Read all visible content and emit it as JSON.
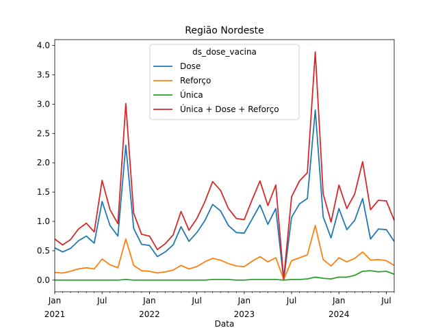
{
  "chart_data": {
    "type": "line",
    "title": "Região Nordeste",
    "xlabel": "Data",
    "ylabel": "",
    "ylim": [
      -0.2,
      4.1
    ],
    "xlim": [
      "2021-01",
      "2024-08"
    ],
    "grid": false,
    "y_ticks": [
      "0.0",
      "0.5",
      "1.0",
      "1.5",
      "2.0",
      "2.5",
      "3.0",
      "3.5",
      "4.0"
    ],
    "x_ticks_major": [
      {
        "month": "2021-01",
        "label": "Jan",
        "year": "2021"
      },
      {
        "month": "2021-07",
        "label": "Jul",
        "year": ""
      },
      {
        "month": "2022-01",
        "label": "Jan",
        "year": "2022"
      },
      {
        "month": "2022-07",
        "label": "Jul",
        "year": ""
      },
      {
        "month": "2023-01",
        "label": "Jan",
        "year": "2023"
      },
      {
        "month": "2023-07",
        "label": "Jul",
        "year": ""
      },
      {
        "month": "2024-01",
        "label": "Jan",
        "year": "2024"
      },
      {
        "month": "2024-07",
        "label": "Jul",
        "year": ""
      }
    ],
    "legend": {
      "title": "ds_dose_vacina",
      "placement": "top-center"
    },
    "x": [
      "2021-01",
      "2021-02",
      "2021-03",
      "2021-04",
      "2021-05",
      "2021-06",
      "2021-07",
      "2021-08",
      "2021-09",
      "2021-10",
      "2021-11",
      "2021-12",
      "2022-01",
      "2022-02",
      "2022-03",
      "2022-04",
      "2022-05",
      "2022-06",
      "2022-07",
      "2022-08",
      "2022-09",
      "2022-10",
      "2022-11",
      "2022-12",
      "2023-01",
      "2023-02",
      "2023-03",
      "2023-04",
      "2023-05",
      "2023-06",
      "2023-07",
      "2023-08",
      "2023-09",
      "2023-10",
      "2023-11",
      "2023-12",
      "2024-01",
      "2024-02",
      "2024-03",
      "2024-04",
      "2024-05",
      "2024-06",
      "2024-07",
      "2024-08"
    ],
    "series": [
      {
        "name": "Dose",
        "color": "#1f77b4",
        "values": [
          0.55,
          0.48,
          0.54,
          0.67,
          0.75,
          0.63,
          1.34,
          0.93,
          0.75,
          2.3,
          0.88,
          0.61,
          0.59,
          0.4,
          0.48,
          0.6,
          0.91,
          0.66,
          0.81,
          1.01,
          1.29,
          1.18,
          0.93,
          0.81,
          0.8,
          1.04,
          1.28,
          0.95,
          1.22,
          0.0,
          1.07,
          1.3,
          1.39,
          2.9,
          1.08,
          0.72,
          1.22,
          0.86,
          1.02,
          1.39,
          0.7,
          0.87,
          0.86,
          0.66
        ]
      },
      {
        "name": "Reforço",
        "color": "#ff7f0e",
        "values": [
          0.13,
          0.12,
          0.15,
          0.19,
          0.21,
          0.19,
          0.36,
          0.26,
          0.21,
          0.7,
          0.25,
          0.16,
          0.15,
          0.12,
          0.14,
          0.17,
          0.25,
          0.19,
          0.23,
          0.31,
          0.37,
          0.34,
          0.28,
          0.24,
          0.23,
          0.32,
          0.4,
          0.31,
          0.38,
          0.01,
          0.33,
          0.38,
          0.43,
          0.93,
          0.35,
          0.24,
          0.38,
          0.31,
          0.37,
          0.48,
          0.34,
          0.35,
          0.33,
          0.25
        ]
      },
      {
        "name": "Única",
        "color": "#2ca02c",
        "values": [
          0.0,
          0.0,
          0.0,
          0.0,
          0.0,
          0.0,
          0.0,
          0.0,
          0.0,
          0.01,
          0.0,
          0.0,
          0.0,
          0.0,
          0.0,
          0.0,
          0.0,
          0.0,
          0.0,
          0.0,
          0.01,
          0.01,
          0.01,
          0.0,
          0.0,
          0.01,
          0.01,
          0.01,
          0.01,
          0.0,
          0.01,
          0.01,
          0.02,
          0.05,
          0.03,
          0.02,
          0.05,
          0.05,
          0.08,
          0.15,
          0.16,
          0.14,
          0.15,
          0.1
        ]
      },
      {
        "name": "Única + Dose + Reforço",
        "color": "#d62728",
        "values": [
          0.7,
          0.6,
          0.69,
          0.87,
          0.97,
          0.82,
          1.7,
          1.2,
          0.96,
          3.01,
          1.14,
          0.78,
          0.75,
          0.52,
          0.62,
          0.77,
          1.17,
          0.85,
          1.05,
          1.33,
          1.68,
          1.53,
          1.22,
          1.05,
          1.03,
          1.37,
          1.69,
          1.27,
          1.62,
          0.02,
          1.42,
          1.69,
          1.83,
          3.89,
          1.47,
          0.99,
          1.62,
          1.22,
          1.47,
          2.02,
          1.2,
          1.36,
          1.35,
          1.02
        ]
      }
    ]
  }
}
